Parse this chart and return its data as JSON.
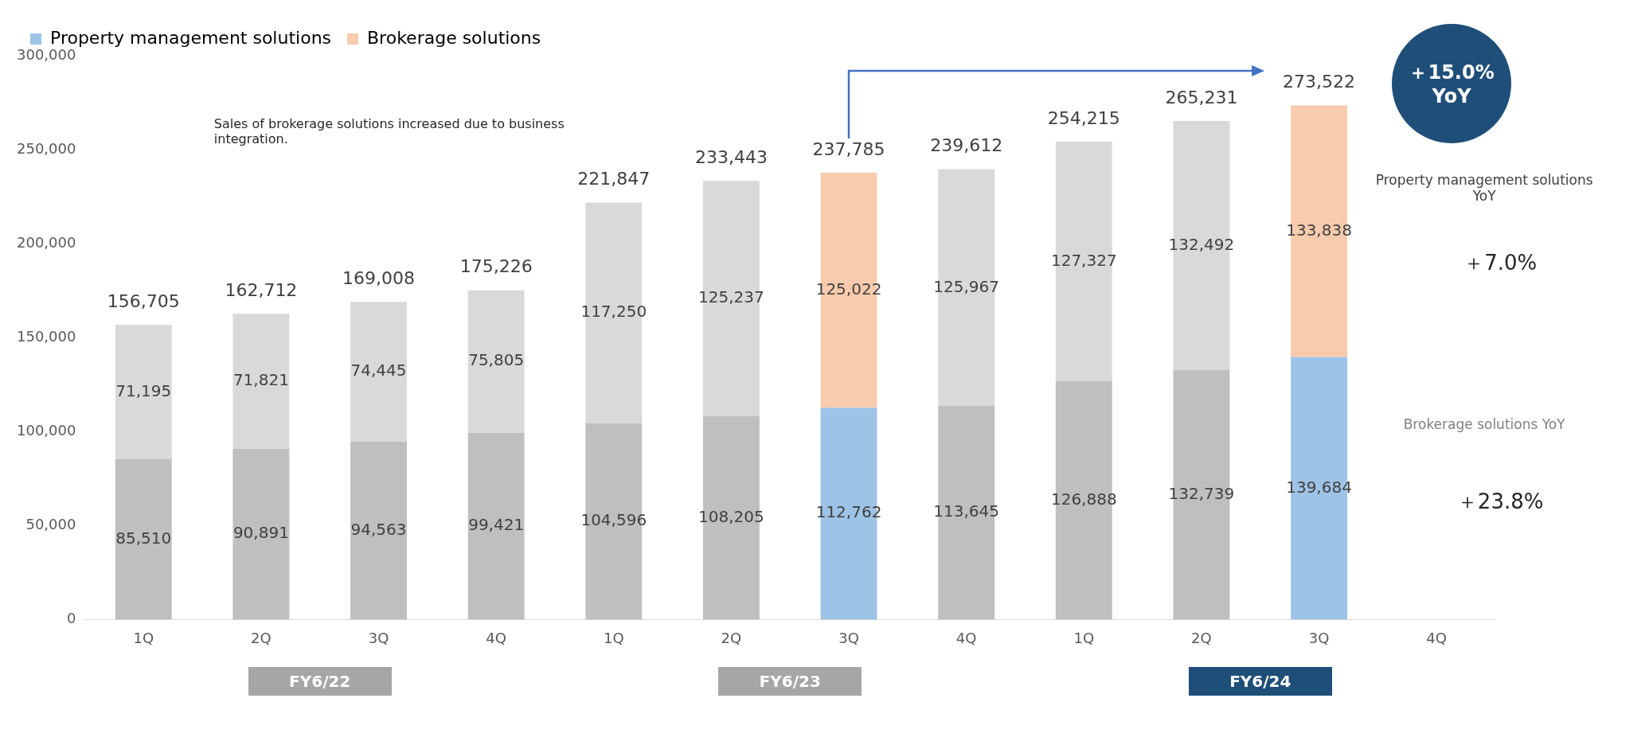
{
  "chart_data": {
    "type": "bar",
    "stacked": true,
    "legend": "top",
    "grid": false,
    "categories": [
      "1Q",
      "2Q",
      "3Q",
      "4Q",
      "1Q",
      "2Q",
      "3Q",
      "4Q",
      "1Q",
      "2Q",
      "3Q",
      "4Q"
    ],
    "ylim": [
      0,
      300000
    ],
    "yticks": [
      {
        "value": 0,
        "label": "0"
      },
      {
        "value": 50000,
        "label": "50,000"
      },
      {
        "value": 100000,
        "label": "100,000"
      },
      {
        "value": 150000,
        "label": "150,000"
      },
      {
        "value": 200000,
        "label": "200,000"
      },
      {
        "value": 250000,
        "label": "250,000"
      },
      {
        "value": 300000,
        "label": "300,000"
      }
    ],
    "series": [
      {
        "name": "Property management solutions",
        "color": "#9dc3e6",
        "colors": [
          "#bfbfbf",
          "#bfbfbf",
          "#bfbfbf",
          "#bfbfbf",
          "#bfbfbf",
          "#bfbfbf",
          "#9dc3e6",
          "#bfbfbf",
          "#bfbfbf",
          "#bfbfbf",
          "#9dc3e6",
          "#bfbfbf"
        ],
        "values": [
          85510,
          90891,
          94563,
          99421,
          104596,
          108205,
          112762,
          113645,
          126888,
          132739,
          139684,
          null
        ],
        "value_labels": [
          "85,510",
          "90,891",
          "94,563",
          "99,421",
          "104,596",
          "108,205",
          "112,762",
          "113,645",
          "126,888",
          "132,739",
          "139,684",
          null
        ]
      },
      {
        "name": "Brokerage solutions",
        "color": "#f8cbad",
        "colors": [
          "#d9d9d9",
          "#d9d9d9",
          "#d9d9d9",
          "#d9d9d9",
          "#d9d9d9",
          "#d9d9d9",
          "#f8cbad",
          "#d9d9d9",
          "#d9d9d9",
          "#d9d9d9",
          "#f8cbad",
          "#d9d9d9"
        ],
        "values": [
          71195,
          71821,
          74445,
          75805,
          117250,
          125237,
          125022,
          125967,
          127327,
          132492,
          133838,
          null
        ],
        "value_labels": [
          "71,195",
          "71,821",
          "74,445",
          "75,805",
          "117,250",
          "125,237",
          "125,022",
          "125,967",
          "127,327",
          "132,492",
          "133,838",
          null
        ]
      }
    ],
    "totals": [
      "156,705",
      "162,712",
      "169,008",
      "175,226",
      "221,847",
      "233,443",
      "237,785",
      "239,612",
      "254,215",
      "265,231",
      "273,522",
      null
    ],
    "annotations": [
      "Sales of brokerage solutions increased due to business integration.",
      "FY6/22",
      "FY6/23",
      "FY6/24",
      "＋15.0% YoY",
      "Property management  solutions YoY",
      "＋7.0%",
      "Brokerage solutions YoY",
      "＋23.8%"
    ]
  }
}
